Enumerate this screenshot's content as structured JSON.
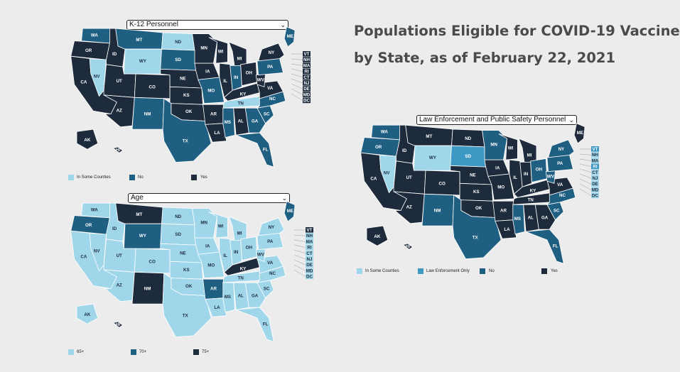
{
  "title": {
    "line1": "Populations Eligible for COVID-19 Vaccine",
    "line2": "by State, as of February 22, 2021"
  },
  "colors": {
    "light": "#9fd6ea",
    "medium": "#1f5f82",
    "dark": "#1e2b3c",
    "enforcement": "#3e98c4",
    "border": "#ffffff"
  },
  "maps": {
    "k12": {
      "dropdown": "K-12 Personnel",
      "legend": [
        "In Some Counties",
        "No",
        "Yes"
      ]
    },
    "age": {
      "dropdown": "Age",
      "legend": [
        "65+",
        "70+",
        "75+"
      ]
    },
    "law": {
      "dropdown": "Law Enforcement and Public Safety Personnel",
      "legend": [
        "In Some Counties",
        "Law Enforcement Only",
        "No",
        "Yes"
      ]
    }
  },
  "state_abbreviations": [
    "WA",
    "OR",
    "CA",
    "NV",
    "ID",
    "MT",
    "WY",
    "UT",
    "AZ",
    "CO",
    "NM",
    "ND",
    "SD",
    "NE",
    "KS",
    "OK",
    "TX",
    "MN",
    "IA",
    "MO",
    "AR",
    "LA",
    "WI",
    "IL",
    "MI",
    "IN",
    "OH",
    "KY",
    "TN",
    "MS",
    "AL",
    "GA",
    "FL",
    "SC",
    "NC",
    "VA",
    "WV",
    "PA",
    "NY",
    "ME",
    "AK",
    "HI"
  ],
  "callout_states": [
    "VT",
    "NH",
    "MA",
    "RI",
    "CT",
    "NJ",
    "DE",
    "MD",
    "DC"
  ]
}
